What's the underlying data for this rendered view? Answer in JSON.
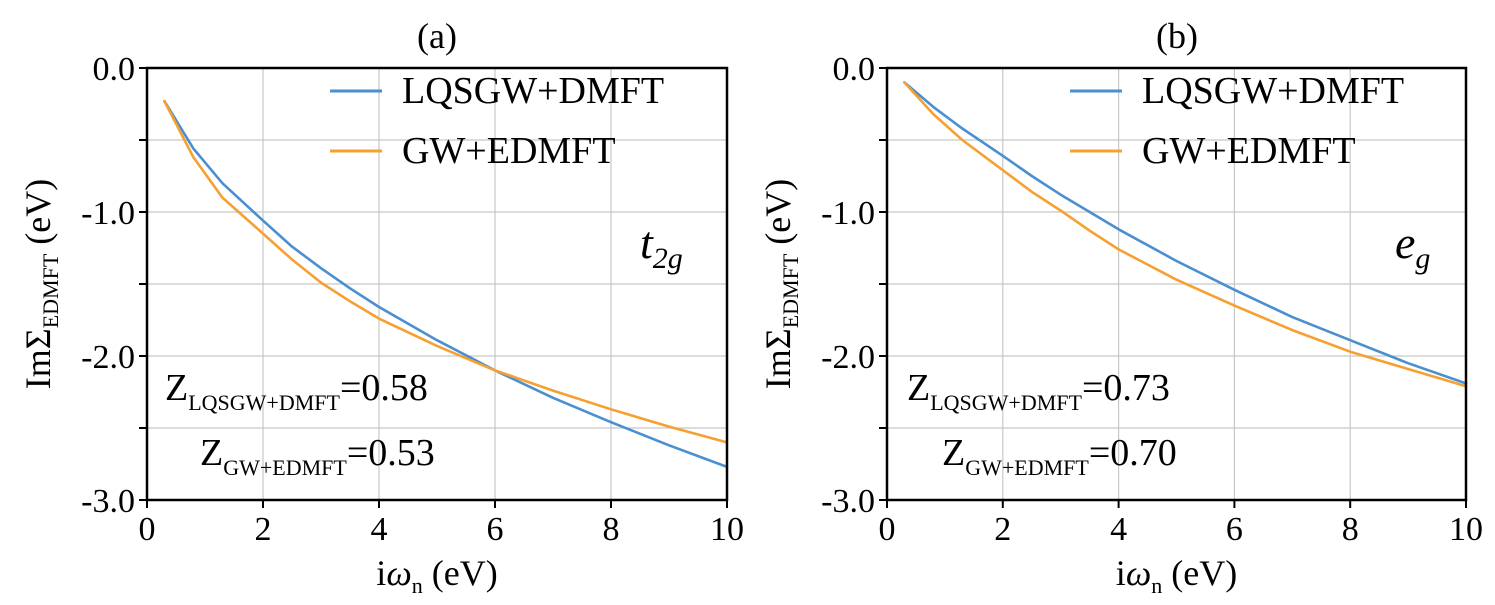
{
  "chart_data": [
    {
      "type": "line",
      "panel_label": "(a)",
      "orbital": {
        "base": "t",
        "sub": "2g"
      },
      "xlabel": {
        "prefix": "i",
        "omega": "ω",
        "sub": "n",
        "suffix": " (eV)"
      },
      "ylabel": {
        "prefix": "ImΣ",
        "sub": "EDMFT",
        "suffix": " (eV)"
      },
      "xlim": [
        0,
        10
      ],
      "ylim": [
        -3.0,
        0.0
      ],
      "xticks": [
        0,
        2,
        4,
        6,
        8,
        10
      ],
      "xtick_labels": [
        "0",
        "2",
        "4",
        "6",
        "8",
        "10"
      ],
      "yticks": [
        0.0,
        -1.0,
        -2.0,
        -3.0
      ],
      "ytick_labels": [
        "0.0",
        "-1.0",
        "-2.0",
        "-3.0"
      ],
      "grid": true,
      "legend_position": "top-right",
      "series": [
        {
          "name": "LQSGW+DMFT",
          "color": "#4a8fd0",
          "x": [
            0.3,
            0.8,
            1.3,
            2.0,
            2.5,
            3.0,
            3.5,
            4.0,
            5.0,
            6.0,
            7.0,
            8.0,
            9.0,
            10.0
          ],
          "y": [
            -0.23,
            -0.56,
            -0.8,
            -1.06,
            -1.24,
            -1.39,
            -1.53,
            -1.66,
            -1.89,
            -2.1,
            -2.29,
            -2.46,
            -2.62,
            -2.77
          ]
        },
        {
          "name": "GW+EDMFT",
          "color": "#f5a030",
          "x": [
            0.3,
            0.8,
            1.3,
            2.0,
            2.5,
            3.0,
            3.5,
            4.0,
            5.0,
            6.0,
            7.0,
            8.0,
            9.0,
            10.0
          ],
          "y": [
            -0.23,
            -0.62,
            -0.9,
            -1.15,
            -1.33,
            -1.49,
            -1.62,
            -1.74,
            -1.93,
            -2.1,
            -2.24,
            -2.37,
            -2.49,
            -2.6
          ]
        }
      ],
      "annotations": [
        {
          "base": "Z",
          "sub": "LQSGW+DMFT",
          "value": "=0.58"
        },
        {
          "base": "Z",
          "sub": "GW+EDMFT",
          "value": "=0.53"
        }
      ]
    },
    {
      "type": "line",
      "panel_label": "(b)",
      "orbital": {
        "base": "e",
        "sub": "g"
      },
      "xlabel": {
        "prefix": "i",
        "omega": "ω",
        "sub": "n",
        "suffix": " (eV)"
      },
      "ylabel": {
        "prefix": "ImΣ",
        "sub": "EDMFT",
        "suffix": " (eV)"
      },
      "xlim": [
        0,
        10
      ],
      "ylim": [
        -3.0,
        0.0
      ],
      "xticks": [
        0,
        2,
        4,
        6,
        8,
        10
      ],
      "xtick_labels": [
        "0",
        "2",
        "4",
        "6",
        "8",
        "10"
      ],
      "yticks": [
        0.0,
        -1.0,
        -2.0,
        -3.0
      ],
      "ytick_labels": [
        "0.0",
        "-1.0",
        "-2.0",
        "-3.0"
      ],
      "grid": true,
      "legend_position": "top-right",
      "series": [
        {
          "name": "LQSGW+DMFT",
          "color": "#4a8fd0",
          "x": [
            0.3,
            0.8,
            1.3,
            2.0,
            2.5,
            3.0,
            3.5,
            4.0,
            5.0,
            6.0,
            7.0,
            8.0,
            9.0,
            10.0
          ],
          "y": [
            -0.1,
            -0.27,
            -0.42,
            -0.61,
            -0.75,
            -0.88,
            -1.0,
            -1.12,
            -1.34,
            -1.54,
            -1.73,
            -1.89,
            -2.05,
            -2.19
          ]
        },
        {
          "name": "GW+EDMFT",
          "color": "#f5a030",
          "x": [
            0.3,
            0.8,
            1.3,
            2.0,
            2.5,
            3.0,
            3.5,
            4.0,
            5.0,
            6.0,
            7.0,
            8.0,
            9.0,
            10.0
          ],
          "y": [
            -0.1,
            -0.32,
            -0.5,
            -0.71,
            -0.86,
            -0.99,
            -1.13,
            -1.26,
            -1.47,
            -1.65,
            -1.82,
            -1.97,
            -2.09,
            -2.21
          ]
        }
      ],
      "annotations": [
        {
          "base": "Z",
          "sub": "LQSGW+DMFT",
          "value": "=0.73"
        },
        {
          "base": "Z",
          "sub": "GW+EDMFT",
          "value": "=0.70"
        }
      ]
    }
  ]
}
